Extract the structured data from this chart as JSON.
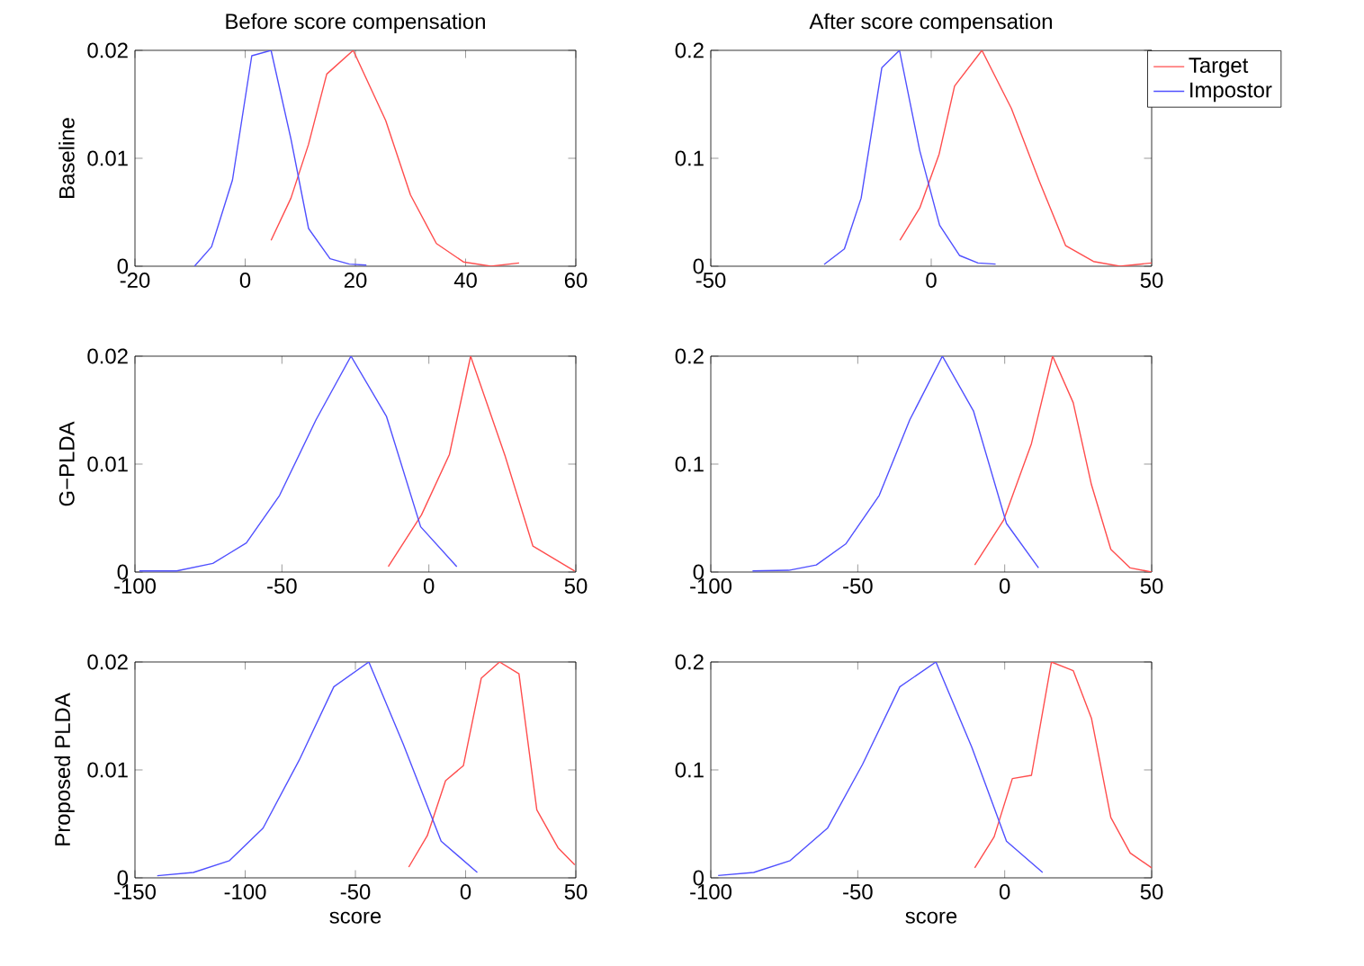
{
  "chart_data": [
    {
      "type": "line",
      "title": "Before score compensation",
      "ylabel": "Baseline",
      "xlim": [
        -20,
        60
      ],
      "ylim": [
        0,
        0.02
      ],
      "xticks": [
        -20,
        0,
        20,
        40,
        60
      ],
      "yticks": [
        0,
        0.01,
        0.02
      ],
      "series": [
        {
          "color": "#ff4d4d",
          "x": [
            4.7,
            8.3,
            11.5,
            14.8,
            19.6,
            25.5,
            30,
            34.7,
            39.6,
            44.6,
            49.7
          ],
          "values": [
            0.0024,
            0.0063,
            0.0113,
            0.0178,
            0.02,
            0.0135,
            0.0066,
            0.0021,
            0.0004,
            0,
            0.0003
          ]
        },
        {
          "color": "#5050ff",
          "x": [
            -9.2,
            -6.1,
            -2.3,
            1.2,
            4.7,
            8.3,
            11.5,
            15.4,
            18.9,
            22
          ],
          "values": [
            0,
            0.0018,
            0.008,
            0.0195,
            0.02,
            0.0118,
            0.0035,
            0.0007,
            0.0002,
            0.0001
          ]
        }
      ]
    },
    {
      "type": "line",
      "title": "After score compensation",
      "legend": "top right",
      "xlim": [
        -50,
        50
      ],
      "ylim": [
        0,
        0.2
      ],
      "xticks": [
        -50,
        0,
        50
      ],
      "yticks": [
        0,
        0.1,
        0.2
      ],
      "series": [
        {
          "name": "Target",
          "color": "#ff4d4d",
          "x": [
            -7.1,
            -2.6,
            1.8,
            5.3,
            11.5,
            18.2,
            24.5,
            30.5,
            36.8,
            42.8,
            50
          ],
          "values": [
            0.024,
            0.054,
            0.104,
            0.167,
            0.2,
            0.146,
            0.079,
            0.019,
            0.0044,
            0,
            0.003
          ]
        },
        {
          "name": "Impostor",
          "color": "#5050ff",
          "x": [
            -24.3,
            -19.7,
            -15.9,
            -11.2,
            -7.2,
            -2.6,
            1.9,
            6.4,
            10.6,
            14.6
          ],
          "values": [
            0.0017,
            0.016,
            0.063,
            0.184,
            0.2,
            0.107,
            0.038,
            0.01,
            0.003,
            0.002
          ]
        }
      ]
    },
    {
      "type": "line",
      "ylabel": "G−PLDA",
      "xlim": [
        -100,
        50
      ],
      "ylim": [
        0,
        0.02
      ],
      "xticks": [
        -100,
        -50,
        0,
        50
      ],
      "yticks": [
        0,
        0.01,
        0.02
      ],
      "series": [
        {
          "color": "#ff4d4d",
          "x": [
            -13.8,
            -2.5,
            7,
            14.2,
            26,
            35.4,
            49.6
          ],
          "values": [
            0.0005,
            0.0053,
            0.0109,
            0.02,
            0.0107,
            0.0024,
            0.0001
          ]
        },
        {
          "color": "#5050ff",
          "x": [
            -98.5,
            -85.8,
            -73.5,
            -62.1,
            -50.8,
            -38.4,
            -26.5,
            -14.4,
            -2.8,
            9.5
          ],
          "values": [
            0.0001,
            0.0001,
            0.0008,
            0.0027,
            0.0071,
            0.0141,
            0.02,
            0.0144,
            0.0042,
            0.0005
          ]
        }
      ]
    },
    {
      "type": "line",
      "xlim": [
        -100,
        50
      ],
      "ylim": [
        0,
        0.2
      ],
      "xticks": [
        -100,
        -50,
        0,
        50
      ],
      "yticks": [
        0,
        0.1,
        0.2
      ],
      "series": [
        {
          "color": "#ff4d4d",
          "x": [
            -10.2,
            -0.4,
            9.1,
            16.3,
            23.3,
            29.5,
            36.1,
            42.7,
            50
          ],
          "values": [
            0.0066,
            0.048,
            0.119,
            0.2,
            0.157,
            0.081,
            0.021,
            0.0038,
            0
          ]
        },
        {
          "color": "#5050ff",
          "x": [
            -85.8,
            -73.5,
            -64.1,
            -54.1,
            -42.7,
            -32.3,
            -21.2,
            -10.6,
            0.6,
            11.5
          ],
          "values": [
            0.001,
            0.0016,
            0.0066,
            0.026,
            0.071,
            0.141,
            0.2,
            0.149,
            0.045,
            0.0038
          ]
        }
      ]
    },
    {
      "type": "line",
      "ylabel": "Proposed PLDA",
      "xlabel": "score",
      "xlim": [
        -150,
        50
      ],
      "ylim": [
        0,
        0.02
      ],
      "xticks": [
        -150,
        -100,
        -50,
        0,
        50
      ],
      "yticks": [
        0,
        0.01,
        0.02
      ],
      "series": [
        {
          "color": "#ff4d4d",
          "x": [
            -25.8,
            -17.4,
            -9.1,
            -1,
            7.1,
            15.4,
            24.2,
            32.3,
            41.9,
            49.5
          ],
          "values": [
            0.001,
            0.0039,
            0.009,
            0.0104,
            0.0185,
            0.02,
            0.0189,
            0.0063,
            0.0028,
            0.0012
          ]
        },
        {
          "color": "#5050ff",
          "x": [
            -139.9,
            -123.5,
            -107.1,
            -91.9,
            -75.5,
            -59.8,
            -43.9,
            -28.3,
            -11.1,
            5.3
          ],
          "values": [
            0.0002,
            0.0005,
            0.0016,
            0.0046,
            0.0109,
            0.0177,
            0.02,
            0.0124,
            0.0034,
            0.0005
          ]
        }
      ]
    },
    {
      "type": "line",
      "xlabel": "score",
      "xlim": [
        -100,
        50
      ],
      "ylim": [
        0,
        0.2
      ],
      "xticks": [
        -100,
        -50,
        0,
        50
      ],
      "yticks": [
        0,
        0.1,
        0.2
      ],
      "series": [
        {
          "color": "#ff4d4d",
          "x": [
            -10.2,
            -3.6,
            2.6,
            9.1,
            15.9,
            23.3,
            29.5,
            36.1,
            42.7,
            50
          ],
          "values": [
            0.0093,
            0.038,
            0.092,
            0.095,
            0.2,
            0.192,
            0.148,
            0.056,
            0.023,
            0.0093
          ]
        },
        {
          "color": "#5050ff",
          "x": [
            -97.5,
            -85.4,
            -73,
            -60.3,
            -48.4,
            -35.7,
            -23.4,
            -11.2,
            0.6,
            12.9
          ],
          "values": [
            0.0022,
            0.005,
            0.016,
            0.046,
            0.105,
            0.177,
            0.2,
            0.121,
            0.034,
            0.005
          ]
        }
      ]
    }
  ]
}
